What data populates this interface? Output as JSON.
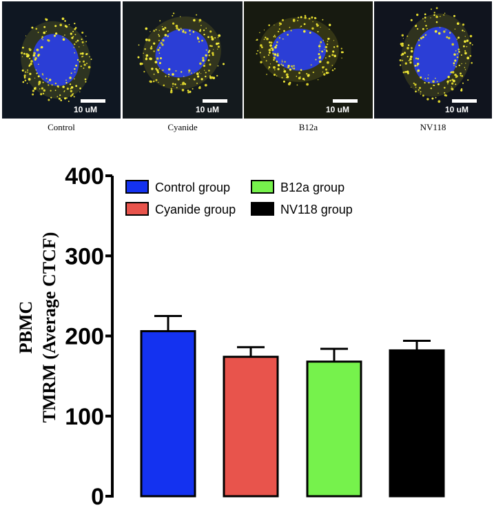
{
  "panels": [
    {
      "label": "Control",
      "scale": "10 uM",
      "bg": "#0f1722"
    },
    {
      "label": "Cyanide",
      "scale": "10 uM",
      "bg": "#141a1e"
    },
    {
      "label": "B12a",
      "scale": "10 uM",
      "bg": "#171a10"
    },
    {
      "label": "NV118",
      "scale": "10 uM",
      "bg": "#10141e"
    }
  ],
  "chart_data": {
    "type": "bar",
    "categories": [
      "Control group",
      "Cyanide group",
      "B12a group",
      "NV118 group"
    ],
    "values": [
      206,
      174,
      168,
      182
    ],
    "errors": [
      19,
      12,
      16,
      12
    ],
    "colors": [
      "#1432f0",
      "#e8544c",
      "#76f24c",
      "#000000"
    ],
    "ylabel_line1": "PBMC",
    "ylabel_line2": "TMRM (Average CTCF)",
    "ylim": [
      0,
      400
    ],
    "yticks": [
      0,
      100,
      200,
      300,
      400
    ],
    "legend": [
      "Control group",
      "Cyanide group",
      "B12a group",
      "NV118 group"
    ],
    "legend_position": "top"
  }
}
